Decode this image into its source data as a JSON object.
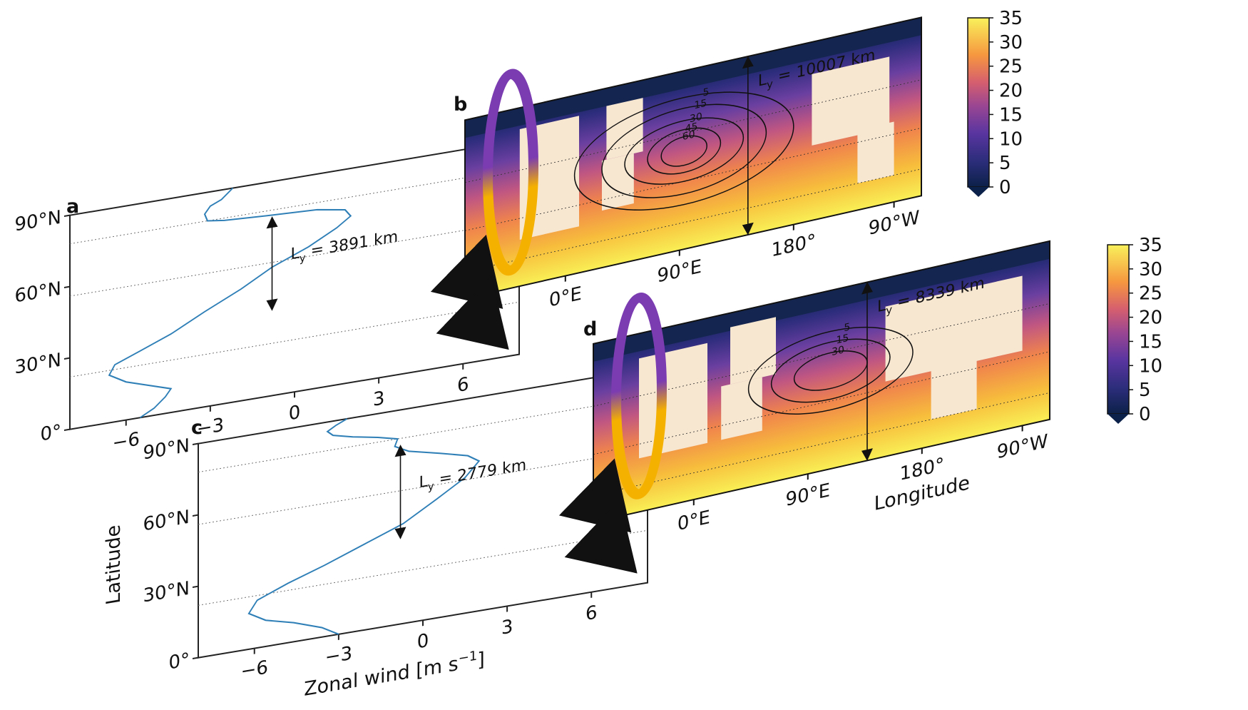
{
  "chart_data": [
    {
      "panel": "a",
      "type": "line",
      "xlabel": "",
      "ylabel": "Latitude",
      "xlim": [
        -8,
        8
      ],
      "ylim": [
        0,
        90
      ],
      "xticks": [
        "−6",
        "−3",
        "0",
        "3",
        "6"
      ],
      "yticks": [
        "0°",
        "30°N",
        "60°N",
        "90°N"
      ],
      "grid_lines": [
        22,
        56,
        78
      ],
      "series": [
        {
          "x": [
            -5.5,
            -5.0,
            -4.6,
            -4.4,
            -5.2,
            -6.0,
            -6.6,
            -6.4,
            -5.5,
            -4.4,
            -3.2,
            -1.9,
            -0.8,
            0.5,
            1.5,
            2.0,
            1.8,
            0.8,
            -1.0,
            -2.5,
            -3.1,
            -3.2,
            -3.0,
            -2.6,
            -2.2
          ],
          "y": [
            0,
            3,
            7,
            10,
            13,
            16,
            20,
            24,
            28,
            33,
            40,
            47,
            54,
            60,
            66,
            70,
            73,
            75,
            76,
            77,
            78,
            81,
            84,
            86,
            90
          ]
        }
      ],
      "annotation": "L",
      "annotation_sub": "y",
      "annotation_rest": " = 3891 km"
    },
    {
      "panel": "b",
      "type": "heatmap",
      "xlabel": "",
      "ylabel": "",
      "xticks": [
        "0°E",
        "90°E",
        "180°",
        "90°W"
      ],
      "colorbar": {
        "min": 0,
        "max": 35,
        "ticks": [
          "0",
          "5",
          "10",
          "15",
          "20",
          "25",
          "30",
          "35"
        ]
      },
      "contour_levels": [
        "5",
        "15",
        "30",
        "45",
        "60"
      ],
      "annotation": "L",
      "annotation_sub": "y",
      "annotation_rest": " = 10007 km"
    },
    {
      "panel": "c",
      "type": "line",
      "xlabel": "Zonal wind [m s",
      "xlabel_sup": "−1",
      "xlabel_end": "]",
      "ylabel": "Latitude",
      "xlim": [
        -8,
        8
      ],
      "ylim": [
        0,
        90
      ],
      "xticks": [
        "−6",
        "−3",
        "0",
        "3",
        "6"
      ],
      "yticks": [
        "0°",
        "30°N",
        "60°N",
        "90°N"
      ],
      "grid_lines": [
        22,
        56,
        78
      ],
      "series": [
        {
          "x": [
            -3.0,
            -3.6,
            -4.6,
            -5.6,
            -6.2,
            -5.9,
            -4.8,
            -3.5,
            -2.1,
            -0.7,
            0.5,
            1.5,
            2.0,
            1.6,
            0.6,
            -0.5,
            -1.0,
            -0.9,
            -1.6,
            -2.5,
            -3.2,
            -3.4,
            -3.1,
            -2.7
          ],
          "y": [
            0,
            4,
            8,
            11,
            15,
            20,
            25,
            30,
            36,
            42,
            50,
            57,
            63,
            66,
            69,
            72,
            75,
            78,
            80,
            82,
            84,
            86,
            88,
            90
          ]
        }
      ],
      "annotation": "L",
      "annotation_sub": "y",
      "annotation_rest": " = 2779 km"
    },
    {
      "panel": "d",
      "type": "heatmap",
      "xlabel": "Longitude",
      "ylabel": "",
      "xticks": [
        "0°E",
        "90°E",
        "180°",
        "90°W"
      ],
      "colorbar": {
        "min": 0,
        "max": 35,
        "ticks": [
          "0",
          "5",
          "10",
          "15",
          "20",
          "25",
          "30",
          "35"
        ]
      },
      "contour_levels": [
        "5",
        "15",
        "30"
      ],
      "annotation": "L",
      "annotation_sub": "y",
      "annotation_rest": " = 8339 km"
    }
  ],
  "colors": {
    "line": "#2f7fb7",
    "ocean_low": "#14264f",
    "ocean_mid": "#6a3fa0",
    "ocean_high": "#f8e84a",
    "land": "#f7e6d0",
    "purple_arrow": "#7b3cb1",
    "yellow_arrow": "#f5b100"
  }
}
